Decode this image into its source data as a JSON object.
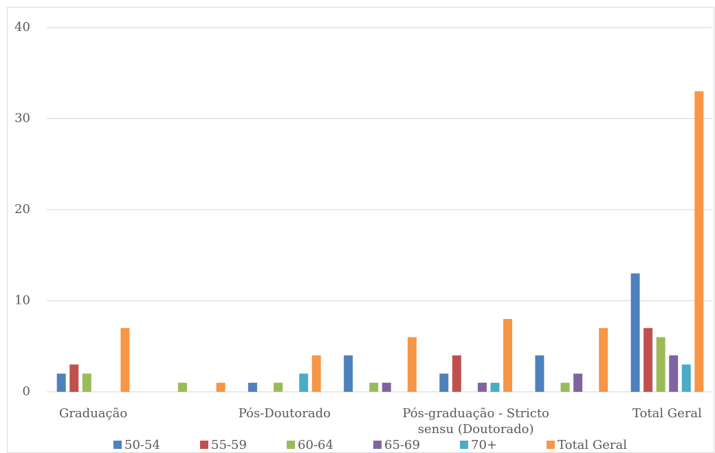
{
  "chart_data": {
    "type": "bar",
    "categories": [
      "Graduação",
      null,
      "Pós-Doutorado",
      null,
      "Pós-graduação - Stricto sensu (Doutorado)",
      null,
      "Total Geral"
    ],
    "series": [
      {
        "name": "50-54",
        "color": "#4f81bd",
        "values": [
          2,
          null,
          1,
          4,
          2,
          4,
          13
        ]
      },
      {
        "name": "55-59",
        "color": "#c0504d",
        "values": [
          3,
          null,
          null,
          null,
          4,
          null,
          7
        ]
      },
      {
        "name": "60-64",
        "color": "#9bbb59",
        "values": [
          2,
          1,
          1,
          1,
          null,
          1,
          6
        ]
      },
      {
        "name": "65-69",
        "color": "#8064a2",
        "values": [
          null,
          null,
          null,
          1,
          1,
          2,
          4
        ]
      },
      {
        "name": "70+",
        "color": "#4bacc6",
        "values": [
          null,
          null,
          2,
          null,
          1,
          null,
          3
        ]
      },
      {
        "name": "Total Geral",
        "color": "#f79646",
        "values": [
          7,
          1,
          4,
          6,
          8,
          7,
          33
        ]
      }
    ],
    "ylim": [
      0,
      40
    ],
    "yticks": [
      0,
      10,
      20,
      30,
      40
    ],
    "grid": true,
    "legend": "bottom"
  }
}
